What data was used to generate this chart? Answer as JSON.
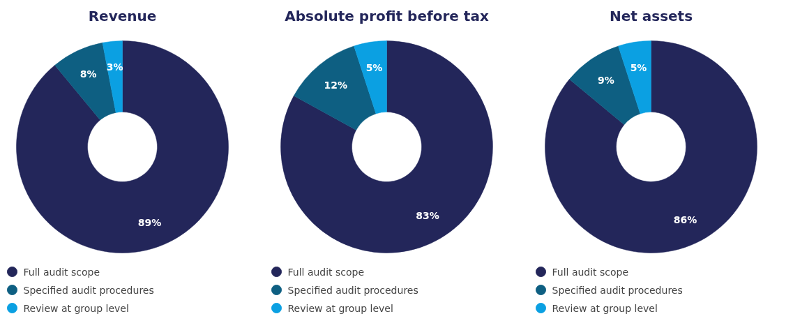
{
  "chart_data": [
    {
      "type": "donut",
      "title": "Revenue",
      "categories": [
        "Full audit scope",
        "Specified audit procedures",
        "Review at group level"
      ],
      "values": [
        89,
        8,
        3
      ],
      "value_labels": [
        "89%",
        "8%",
        "3%"
      ],
      "colors": [
        "#23265a",
        "#0e5f82",
        "#0ba0e2"
      ],
      "legend": "bottom"
    },
    {
      "type": "donut",
      "title": "Absolute profit before tax",
      "categories": [
        "Full audit scope",
        "Specified audit procedures",
        "Review at group level"
      ],
      "values": [
        83,
        12,
        5
      ],
      "value_labels": [
        "83%",
        "12%",
        "5%"
      ],
      "colors": [
        "#23265a",
        "#0e5f82",
        "#0ba0e2"
      ],
      "legend": "bottom"
    },
    {
      "type": "donut",
      "title": "Net assets",
      "categories": [
        "Full audit scope",
        "Specified audit procedures",
        "Review at group level"
      ],
      "values": [
        86,
        9,
        5
      ],
      "value_labels": [
        "86%",
        "9%",
        "5%"
      ],
      "colors": [
        "#23265a",
        "#0e5f82",
        "#0ba0e2"
      ],
      "legend": "bottom"
    }
  ]
}
